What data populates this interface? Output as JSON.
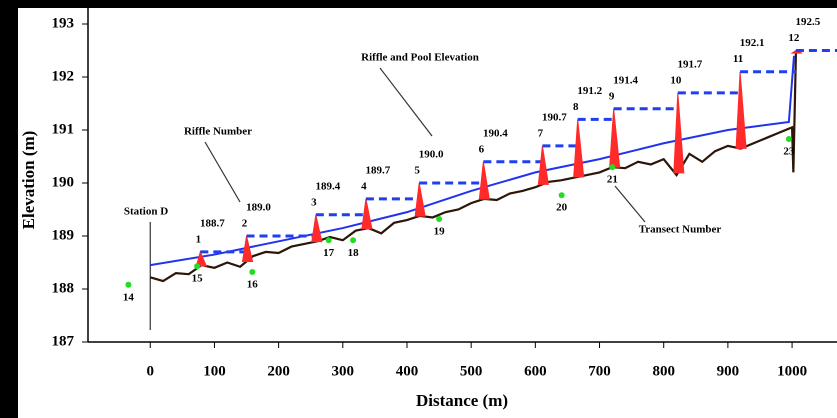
{
  "chart_data": {
    "type": "line",
    "x_label": "Distance (m)",
    "y_label": "Elevation (m)",
    "xlim": [
      -97,
      1070
    ],
    "ylim": [
      187,
      193
    ],
    "xticks": [
      0,
      100,
      200,
      300,
      400,
      500,
      600,
      700,
      800,
      900,
      1000
    ],
    "yticks": [
      187,
      188,
      189,
      190,
      191,
      192,
      193
    ],
    "grid": false,
    "annotations": [
      "Riffle and Pool Elevation",
      "Riffle Number",
      "Station D",
      "Transect Number"
    ],
    "series": [
      {
        "kind": "line",
        "color": "#2b1608",
        "x": [
          0,
          20,
          40,
          60,
          80,
          100,
          120,
          140,
          160,
          180,
          200,
          220,
          240,
          260,
          280,
          300,
          320,
          340,
          360,
          380,
          400,
          420,
          440,
          460,
          480,
          500,
          520,
          540,
          560,
          580,
          600,
          620,
          640,
          660,
          680,
          700,
          720,
          740,
          760,
          780,
          800,
          820,
          840,
          860,
          880,
          900,
          920,
          940,
          960,
          980,
          1000,
          1002,
          1006
        ],
        "values": [
          188.22,
          188.15,
          188.3,
          188.28,
          188.45,
          188.4,
          188.5,
          188.42,
          188.62,
          188.7,
          188.68,
          188.8,
          188.85,
          188.9,
          188.98,
          188.92,
          189.1,
          189.15,
          189.05,
          189.25,
          189.3,
          189.38,
          189.35,
          189.45,
          189.5,
          189.62,
          189.7,
          189.68,
          189.8,
          189.85,
          189.92,
          190.02,
          190.05,
          190.1,
          190.15,
          190.2,
          190.3,
          190.28,
          190.4,
          190.35,
          190.45,
          190.15,
          190.55,
          190.4,
          190.6,
          190.7,
          190.65,
          190.75,
          190.85,
          190.95,
          191.05,
          190.2,
          192.45
        ]
      },
      {
        "kind": "line",
        "color": "#2233ee",
        "x": [
          0,
          100,
          200,
          300,
          400,
          500,
          600,
          700,
          800,
          900,
          995,
          1003
        ],
        "values": [
          188.45,
          188.65,
          188.9,
          189.15,
          189.45,
          189.85,
          190.2,
          190.45,
          190.75,
          191.0,
          191.15,
          192.4
        ]
      },
      {
        "kind": "step",
        "color": "#1f3ff0",
        "riffle_color": "#ff2a2a",
        "labels": [
          "1",
          "2",
          "3",
          "4",
          "5",
          "6",
          "7",
          "8",
          "9",
          "10",
          "11",
          "12"
        ],
        "x": [
          78,
          150,
          258,
          336,
          419,
          519,
          611,
          666,
          722,
          822,
          919,
          1006
        ],
        "values": [
          188.7,
          189,
          189.4,
          189.7,
          190,
          190.4,
          190.7,
          191.2,
          191.4,
          191.7,
          192.1,
          192.5
        ],
        "value_labels": [
          "188.7",
          "189.0",
          "189.4",
          "189.7",
          "190.0",
          "190.4",
          "190.7",
          "191.2",
          "191.4",
          "191.7",
          "192.1",
          "192.5"
        ]
      },
      {
        "kind": "scatter",
        "color": "#22dd22",
        "labels": [
          "14",
          "15",
          "16",
          "17",
          "18",
          "19",
          "20",
          "21",
          "23"
        ],
        "x": [
          -34,
          73,
          159,
          278,
          316,
          450,
          641,
          720,
          995
        ],
        "values": [
          188.08,
          188.43,
          188.32,
          188.92,
          188.92,
          189.32,
          189.77,
          190.3,
          190.83
        ]
      }
    ]
  }
}
